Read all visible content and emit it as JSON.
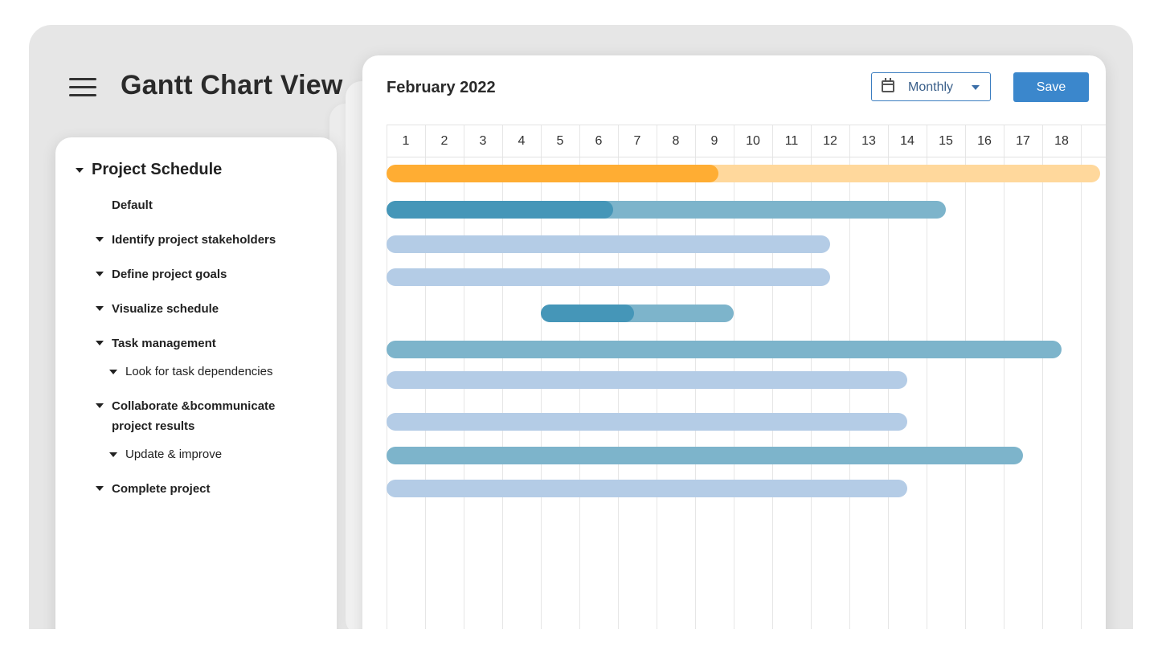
{
  "app": {
    "title": "Gantt Chart View"
  },
  "tree": {
    "root_label": "Project Schedule",
    "items": [
      {
        "label": "Default",
        "level": 1,
        "caret": false
      },
      {
        "label": "Identify project stakeholders",
        "level": 1,
        "caret": true
      },
      {
        "label": "Define project goals",
        "level": 1,
        "caret": true
      },
      {
        "label": "Visualize schedule",
        "level": 1,
        "caret": true
      },
      {
        "label": "Task management",
        "level": 1,
        "caret": true
      },
      {
        "label": "Look for task dependencies",
        "level": 2,
        "caret": true
      },
      {
        "label": "Collaborate &bcommunicate",
        "label_line2": "project results",
        "level": 1,
        "caret": true
      },
      {
        "label": "Update & improve",
        "level": 2,
        "caret": true
      },
      {
        "label": "Complete project",
        "level": 1,
        "caret": true
      }
    ]
  },
  "gantt": {
    "month": "February 2022",
    "view_select": {
      "value": "Monthly"
    },
    "save_label": "Save",
    "days": [
      "1",
      "2",
      "3",
      "4",
      "5",
      "6",
      "7",
      "8",
      "9",
      "10",
      "11",
      "12",
      "13",
      "14",
      "15",
      "16",
      "17",
      "18"
    ],
    "colors": {
      "orange": "#ffad33",
      "orange_light": "#ffd89c",
      "teal_dark": "#4596b8",
      "teal": "#7db4cb",
      "blue_light": "#b4cce6"
    },
    "bars": [
      {
        "start_day": 1,
        "end_day": 19.5,
        "progress": 0.465,
        "color": "orange_light",
        "fill": "orange"
      },
      {
        "start_day": 1,
        "end_day": 15.5,
        "progress": 0.405,
        "color": "teal",
        "fill": "teal_dark"
      },
      {
        "start_day": 1,
        "end_day": 12.5,
        "progress": 0,
        "color": "blue_light"
      },
      {
        "start_day": 1,
        "end_day": 12.5,
        "progress": 0,
        "color": "blue_light"
      },
      {
        "start_day": 5,
        "end_day": 10,
        "progress": 0.485,
        "color": "teal",
        "fill": "teal_dark"
      },
      {
        "start_day": 1,
        "end_day": 18.5,
        "progress": 0,
        "color": "teal"
      },
      {
        "start_day": 1,
        "end_day": 14.5,
        "progress": 0,
        "color": "blue_light"
      },
      {
        "start_day": 1,
        "end_day": 14.5,
        "progress": 0,
        "color": "blue_light"
      },
      {
        "start_day": 1,
        "end_day": 17.5,
        "progress": 0,
        "color": "teal"
      },
      {
        "start_day": 1,
        "end_day": 14.5,
        "progress": 0,
        "color": "blue_light"
      }
    ]
  }
}
